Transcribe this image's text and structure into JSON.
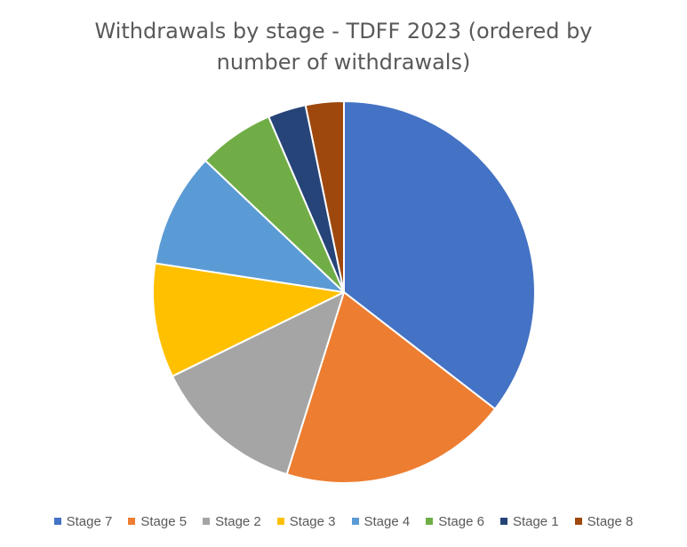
{
  "chart_data": {
    "type": "pie",
    "title": "Withdrawals by stage - TDFF 2023 (ordered by number of withdrawals)",
    "categories": [
      "Stage 7",
      "Stage 5",
      "Stage 2",
      "Stage 3",
      "Stage 4",
      "Stage 6",
      "Stage 1",
      "Stage 8"
    ],
    "values": [
      11,
      6,
      4,
      3,
      3,
      2,
      1,
      1
    ],
    "colors": [
      "#4472C4",
      "#ED7D31",
      "#A5A5A5",
      "#FFC000",
      "#5B9BD5",
      "#70AD47",
      "#264478",
      "#9E480E"
    ],
    "start_angle_deg": 0,
    "direction": "clockwise",
    "legend_position": "bottom"
  }
}
